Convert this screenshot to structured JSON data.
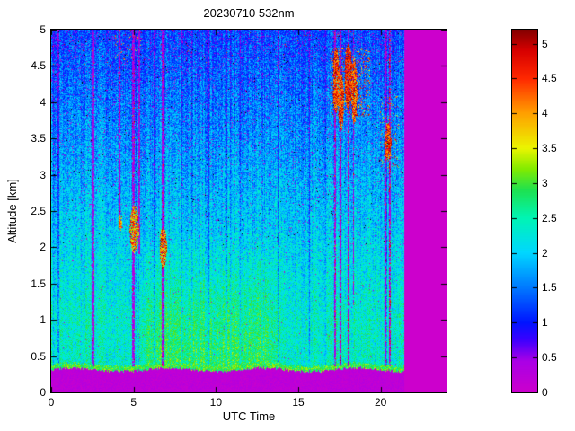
{
  "chart_data": {
    "type": "heatmap",
    "title": "20230710 532nm",
    "xlabel": "UTC Time",
    "ylabel": "Altitude [km]",
    "xlim": [
      0,
      24
    ],
    "ylim": [
      0,
      5
    ],
    "xticks": [
      0,
      5,
      10,
      15,
      20
    ],
    "yticks": [
      0,
      0.5,
      1,
      1.5,
      2,
      2.5,
      3,
      3.5,
      4,
      4.5,
      5
    ],
    "grid": false,
    "legend": false,
    "colorbar": {
      "position": "right",
      "vmin": 0,
      "vmax": 5.2,
      "ticks": [
        0,
        0.5,
        1,
        1.5,
        2,
        2.5,
        3,
        3.5,
        4,
        4.5,
        5
      ]
    },
    "colormap": {
      "description": "magenta-blue-cyan-green-yellow-orange-red-darkred",
      "no_data_color": "#cc00cc",
      "stops": [
        [
          0.0,
          204,
          0,
          204
        ],
        [
          0.45,
          170,
          0,
          230
        ],
        [
          0.75,
          60,
          0,
          255
        ],
        [
          1.0,
          0,
          20,
          255
        ],
        [
          1.5,
          0,
          120,
          255
        ],
        [
          2.0,
          0,
          215,
          255
        ],
        [
          2.5,
          0,
          245,
          180
        ],
        [
          2.9,
          30,
          225,
          80
        ],
        [
          3.2,
          130,
          235,
          0
        ],
        [
          3.5,
          235,
          245,
          0
        ],
        [
          4.0,
          255,
          160,
          0
        ],
        [
          4.5,
          255,
          40,
          0
        ],
        [
          4.9,
          215,
          0,
          0
        ],
        [
          5.2,
          130,
          0,
          0
        ]
      ]
    },
    "data_end_utc": 21.45,
    "surface_band_top_km": 0.31,
    "profile": {
      "base_low": 2.35,
      "lapse_per_km": 0.28,
      "noise_amp": 1.0,
      "enhancement": {
        "t0": 5,
        "t1": 14,
        "alt_max": 2.2,
        "strength": 0.55
      }
    },
    "speckle": {
      "magenta_base_p": 0.004,
      "magenta_alt_factor": 0.015,
      "red_p": 0.004,
      "red_alt_min": 4.5,
      "black_p": 0.0035,
      "black_alt_min": 2.0
    },
    "stripes": [
      {
        "t": 2.55,
        "w": 0.16,
        "a0": 0.36,
        "a1": 5.0,
        "redp": 0.02
      },
      {
        "t": 4.15,
        "w": 0.1,
        "a0": 2.3,
        "a1": 5.0,
        "redp": 0.05
      },
      {
        "t": 5.0,
        "w": 0.15,
        "a0": 0.36,
        "a1": 5.0,
        "redp": 0.05
      },
      {
        "t": 5.35,
        "w": 0.08,
        "a0": 1.9,
        "a1": 5.0,
        "redp": 0.05
      },
      {
        "t": 6.8,
        "w": 0.14,
        "a0": 0.36,
        "a1": 5.0,
        "redp": 0.06
      },
      {
        "t": 17.25,
        "w": 0.13,
        "a0": 0.36,
        "a1": 5.0,
        "redp": 0.1
      },
      {
        "t": 17.55,
        "w": 0.12,
        "a0": 0.36,
        "a1": 5.0,
        "redp": 0.1
      },
      {
        "t": 18.05,
        "w": 0.1,
        "a0": 0.36,
        "a1": 5.0,
        "redp": 0.1
      },
      {
        "t": 18.35,
        "w": 0.1,
        "a0": 1.2,
        "a1": 5.0,
        "redp": 0.08
      },
      {
        "t": 20.3,
        "w": 0.12,
        "a0": 0.36,
        "a1": 5.0,
        "redp": 0.08
      },
      {
        "t": 20.55,
        "w": 0.13,
        "a0": 0.36,
        "a1": 5.0,
        "redp": 0.2
      }
    ],
    "blobs": [
      {
        "t": 5.05,
        "a": 2.25,
        "rt": 0.28,
        "ra": 0.33,
        "vmin": 2.9,
        "vmax": 5.0,
        "p": 0.85
      },
      {
        "t": 6.8,
        "a": 2.0,
        "rt": 0.22,
        "ra": 0.28,
        "vmin": 3.2,
        "vmax": 5.2,
        "p": 0.85
      },
      {
        "t": 4.2,
        "a": 2.35,
        "rt": 0.13,
        "ra": 0.12,
        "vmin": 3.5,
        "vmax": 5.0,
        "p": 0.8
      },
      {
        "t": 17.3,
        "a": 4.3,
        "rt": 0.2,
        "ra": 0.45,
        "vmin": 3.8,
        "vmax": 5.2,
        "p": 0.9
      },
      {
        "t": 17.6,
        "a": 4.0,
        "rt": 0.17,
        "ra": 0.4,
        "vmin": 3.8,
        "vmax": 5.2,
        "p": 0.9
      },
      {
        "t": 18.05,
        "a": 4.35,
        "rt": 0.22,
        "ra": 0.45,
        "vmin": 4.0,
        "vmax": 5.2,
        "p": 0.9
      },
      {
        "t": 18.4,
        "a": 4.15,
        "rt": 0.18,
        "ra": 0.45,
        "vmin": 3.6,
        "vmax": 5.2,
        "p": 0.85
      },
      {
        "t": 20.45,
        "a": 3.45,
        "rt": 0.2,
        "ra": 0.27,
        "vmin": 3.8,
        "vmax": 5.2,
        "p": 0.9
      }
    ],
    "bands": [
      {
        "t0": 16.95,
        "t1": 19.35,
        "a0": 3.8,
        "a1": 4.75,
        "p": 0.16,
        "vmin": 3.5,
        "vmax": 5.2
      },
      {
        "t0": 19.95,
        "t1": 21.1,
        "a0": 3.1,
        "a1": 4.1,
        "p": 0.07,
        "vmin": 3.3,
        "vmax": 5.0
      },
      {
        "t0": 3.9,
        "t1": 5.5,
        "a0": 4.55,
        "a1": 5.0,
        "p": 0.05,
        "vmin": 3.6,
        "vmax": 5.0
      }
    ],
    "render_seed": 20230710
  }
}
